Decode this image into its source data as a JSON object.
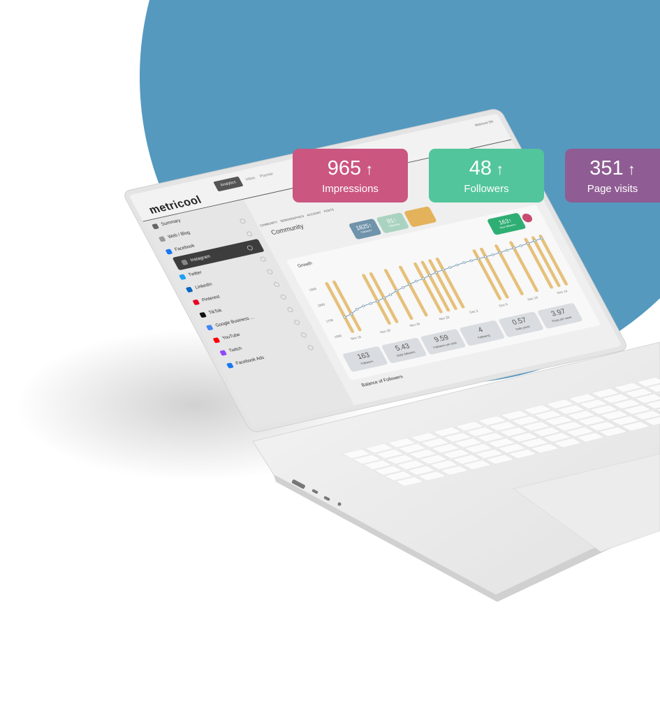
{
  "colors": {
    "background_circle": "#5599bf",
    "impressions": "#cb5680",
    "followers": "#52c59c",
    "page_visits": "#8f5c93",
    "bar": "#e6c07a",
    "line": "#7a9db5"
  },
  "overlay_cards": [
    {
      "value": "965",
      "arrow": "↑",
      "label": "Impressions"
    },
    {
      "value": "48",
      "arrow": "↑",
      "label": "Followers"
    },
    {
      "value": "351",
      "arrow": "↑",
      "label": "Page visits"
    }
  ],
  "app": {
    "logo": "metricool",
    "tabs": [
      "Analytics",
      "Inbox",
      "Planner"
    ],
    "subtabs": [
      "COMMUNITY",
      "DEMOGRAPHICS",
      "ACCOUNT",
      "POSTS"
    ],
    "user": "Metricool SN",
    "page_title": "Community",
    "sidebar": [
      {
        "label": "Summary",
        "icon": "calendar-icon",
        "color": "#666"
      },
      {
        "label": "Web / Blog",
        "icon": "rss-icon",
        "color": "#999"
      },
      {
        "label": "Facebook",
        "icon": "facebook-icon",
        "color": "#1877f2"
      },
      {
        "label": "Instagram",
        "icon": "instagram-icon",
        "color": "#888"
      },
      {
        "label": "Twitter",
        "icon": "twitter-icon",
        "color": "#1da1f2"
      },
      {
        "label": "LinkedIn",
        "icon": "linkedin-icon",
        "color": "#0a66c2"
      },
      {
        "label": "Pinterest",
        "icon": "pinterest-icon",
        "color": "#e60023"
      },
      {
        "label": "TikTok",
        "icon": "tiktok-icon",
        "color": "#111"
      },
      {
        "label": "Google Business ...",
        "icon": "google-business-icon",
        "color": "#4285f4"
      },
      {
        "label": "YouTube",
        "icon": "youtube-icon",
        "color": "#ff0000"
      },
      {
        "label": "Twitch",
        "icon": "twitch-icon",
        "color": "#9146ff"
      },
      {
        "label": "Facebook Ads",
        "icon": "facebook-ads-icon",
        "color": "#1877f2"
      }
    ],
    "active_sidebar": "Instagram",
    "header_cards": [
      {
        "value": "1825↑",
        "label": "Followers",
        "color": "#6f93aa"
      },
      {
        "value": "91↑",
        "label": "Following",
        "color": "#b9dccd"
      },
      {
        "value": "",
        "label": "",
        "color": "#e3b25a"
      }
    ],
    "growth_title": "Growth",
    "stats": [
      {
        "value": "163",
        "label": "Followers"
      },
      {
        "value": "5.43",
        "label": "Daily followers"
      },
      {
        "value": "9.59",
        "label": "Followers per post"
      },
      {
        "value": "4",
        "label": "Following"
      },
      {
        "value": "0.57",
        "label": "Daily posts"
      },
      {
        "value": "3.97",
        "label": "Posts per week"
      }
    ],
    "new_followers": {
      "value": "163↑",
      "label": "New followers"
    },
    "balance_title": "Balance of Followers"
  },
  "chart_data": {
    "type": "bar",
    "title": "Growth",
    "yticks": [
      "1900",
      "1800",
      "1700",
      "1600"
    ],
    "ylim": [
      1600,
      1900
    ],
    "xticks": [
      "Nov 16",
      "Nov 20",
      "Nov 24",
      "Nov 28",
      "Dec 2",
      "Dec 6",
      "Dec 10",
      "Dec 14"
    ],
    "line": [
      1700,
      1710,
      1730,
      1740,
      1745,
      1750,
      1760,
      1770,
      1785,
      1795,
      1805,
      1815,
      1820,
      1830,
      1840,
      1845,
      1850,
      1855,
      1860,
      1862,
      1864,
      1866,
      1868,
      1872,
      1876,
      1880,
      1884,
      1888,
      1895,
      1905
    ],
    "bars": [
      1,
      1,
      0,
      0,
      0,
      1,
      1,
      0,
      1,
      0,
      1,
      0,
      1,
      1,
      1,
      1,
      0,
      0,
      0,
      0,
      1,
      1,
      0,
      1,
      0,
      1,
      0,
      1,
      1,
      1
    ]
  }
}
